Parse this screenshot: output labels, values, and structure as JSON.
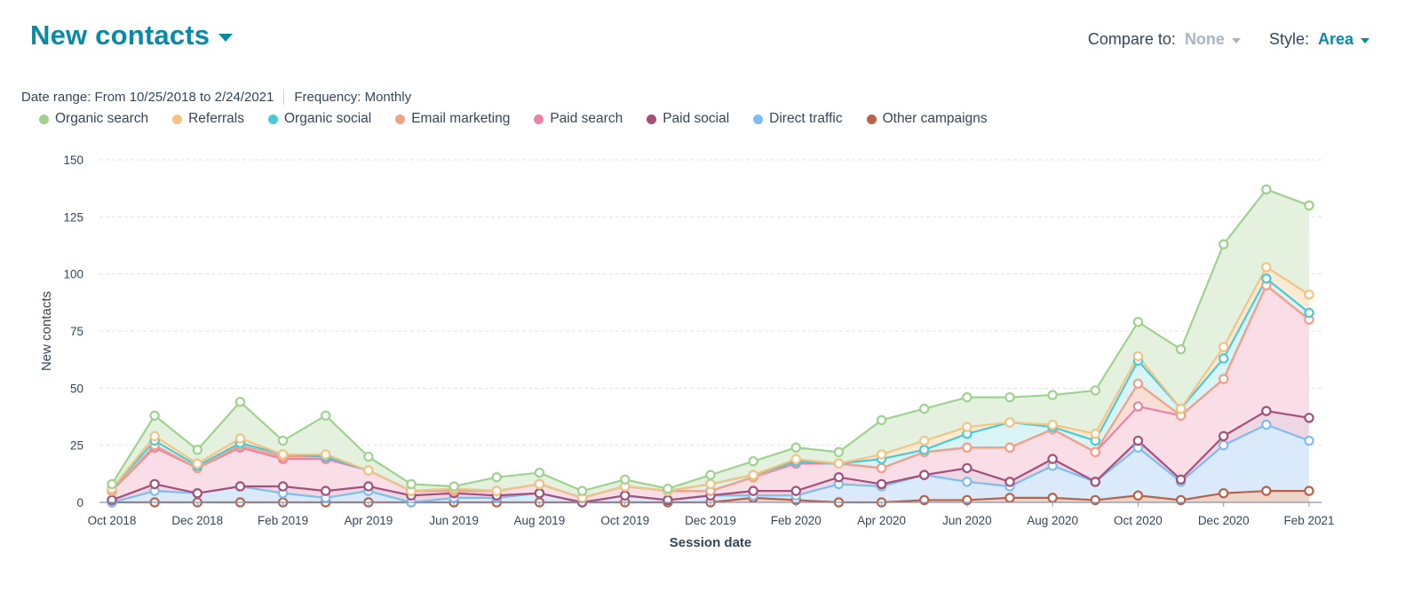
{
  "header": {
    "title": "New contacts"
  },
  "controls": {
    "compare_label": "Compare to:",
    "compare_value": "None",
    "style_label": "Style:",
    "style_value": "Area"
  },
  "meta": {
    "date_range": "Date range: From 10/25/2018 to 2/24/2021",
    "frequency": "Frequency: Monthly"
  },
  "chart_data": {
    "type": "area",
    "stacked": true,
    "xlabel": "Session date",
    "ylabel": "New contacts",
    "ylim": [
      0,
      150
    ],
    "yticks": [
      0,
      25,
      50,
      75,
      100,
      125,
      150
    ],
    "grid": true,
    "legend_position": "top-left",
    "categories": [
      "Oct 2018",
      "Nov 2018",
      "Dec 2018",
      "Jan 2019",
      "Feb 2019",
      "Mar 2019",
      "Apr 2019",
      "May 2019",
      "Jun 2019",
      "Jul 2019",
      "Aug 2019",
      "Sep 2019",
      "Oct 2019",
      "Nov 2019",
      "Dec 2019",
      "Jan 2020",
      "Feb 2020",
      "Mar 2020",
      "Apr 2020",
      "May 2020",
      "Jun 2020",
      "Jul 2020",
      "Aug 2020",
      "Sep 2020",
      "Oct 2020",
      "Nov 2020",
      "Dec 2020",
      "Jan 2021",
      "Feb 2021"
    ],
    "tick_labels": [
      "Oct 2018",
      "",
      "Dec 2018",
      "",
      "Feb 2019",
      "",
      "Apr 2019",
      "",
      "Jun 2019",
      "",
      "Aug 2019",
      "",
      "Oct 2019",
      "",
      "Dec 2019",
      "",
      "Feb 2020",
      "",
      "Apr 2020",
      "",
      "Jun 2020",
      "",
      "Aug 2020",
      "",
      "Oct 2020",
      "",
      "Dec 2020",
      "",
      "Feb 2021"
    ],
    "series": [
      {
        "name": "Other campaigns",
        "color": "#b9624b",
        "fill": "#ecd0c4",
        "values": [
          0,
          0,
          0,
          0,
          0,
          0,
          0,
          0,
          0,
          0,
          0,
          0,
          0,
          0,
          0,
          2,
          1,
          0,
          0,
          1,
          1,
          2,
          2,
          1,
          3,
          1,
          4,
          5,
          5
        ]
      },
      {
        "name": "Direct traffic",
        "color": "#7fbcf2",
        "fill": "#d6e8fb",
        "values": [
          0,
          5,
          4,
          7,
          4,
          2,
          5,
          0,
          2,
          2,
          4,
          0,
          3,
          1,
          3,
          1,
          2,
          8,
          7,
          11,
          8,
          5,
          14,
          8,
          21,
          8,
          21,
          29,
          22
        ]
      },
      {
        "name": "Paid social",
        "color": "#a3507a",
        "fill": "#ead3e0",
        "values": [
          1,
          3,
          0,
          0,
          3,
          3,
          2,
          3,
          2,
          1,
          0,
          0,
          0,
          0,
          0,
          2,
          2,
          3,
          1,
          0,
          6,
          2,
          3,
          0,
          3,
          1,
          4,
          6,
          10
        ]
      },
      {
        "name": "Paid search",
        "color": "#e983a7",
        "fill": "#f8d9e4",
        "values": [
          4,
          16,
          11,
          17,
          12,
          14,
          7,
          2,
          1,
          2,
          4,
          2,
          4,
          4,
          2,
          6,
          12,
          6,
          7,
          10,
          9,
          15,
          13,
          13,
          15,
          28,
          25,
          55,
          43
        ]
      },
      {
        "name": "Email marketing",
        "color": "#f2a086",
        "fill": "#f9dcd1",
        "values": [
          0,
          1,
          0,
          1,
          1,
          1,
          0,
          0,
          0,
          0,
          0,
          0,
          0,
          0,
          0,
          0,
          1,
          0,
          0,
          0,
          0,
          0,
          0,
          0,
          10,
          0,
          0,
          0,
          0
        ]
      },
      {
        "name": "Organic social",
        "color": "#4bcad6",
        "fill": "#d6f2f3",
        "values": [
          1,
          2,
          1,
          1,
          1,
          0,
          0,
          0,
          1,
          0,
          0,
          0,
          0,
          0,
          3,
          1,
          0,
          0,
          4,
          1,
          6,
          11,
          1,
          5,
          10,
          3,
          9,
          3,
          3
        ]
      },
      {
        "name": "Referrals",
        "color": "#f5c384",
        "fill": "#fbe8cf",
        "values": [
          0,
          2,
          1,
          2,
          0,
          1,
          0,
          0,
          0,
          0,
          0,
          0,
          0,
          0,
          0,
          0,
          1,
          0,
          2,
          4,
          3,
          0,
          1,
          3,
          2,
          0,
          5,
          5,
          8
        ]
      },
      {
        "name": "Organic search",
        "color": "#9fd28f",
        "fill": "#e2f0dc",
        "values": [
          2,
          9,
          6,
          16,
          6,
          17,
          6,
          3,
          1,
          6,
          5,
          3,
          3,
          1,
          4,
          6,
          5,
          5,
          15,
          14,
          13,
          11,
          13,
          19,
          15,
          26,
          45,
          34,
          39
        ]
      }
    ],
    "legend_order": [
      "Organic search",
      "Referrals",
      "Organic social",
      "Email marketing",
      "Paid search",
      "Paid social",
      "Direct traffic",
      "Other campaigns"
    ]
  }
}
